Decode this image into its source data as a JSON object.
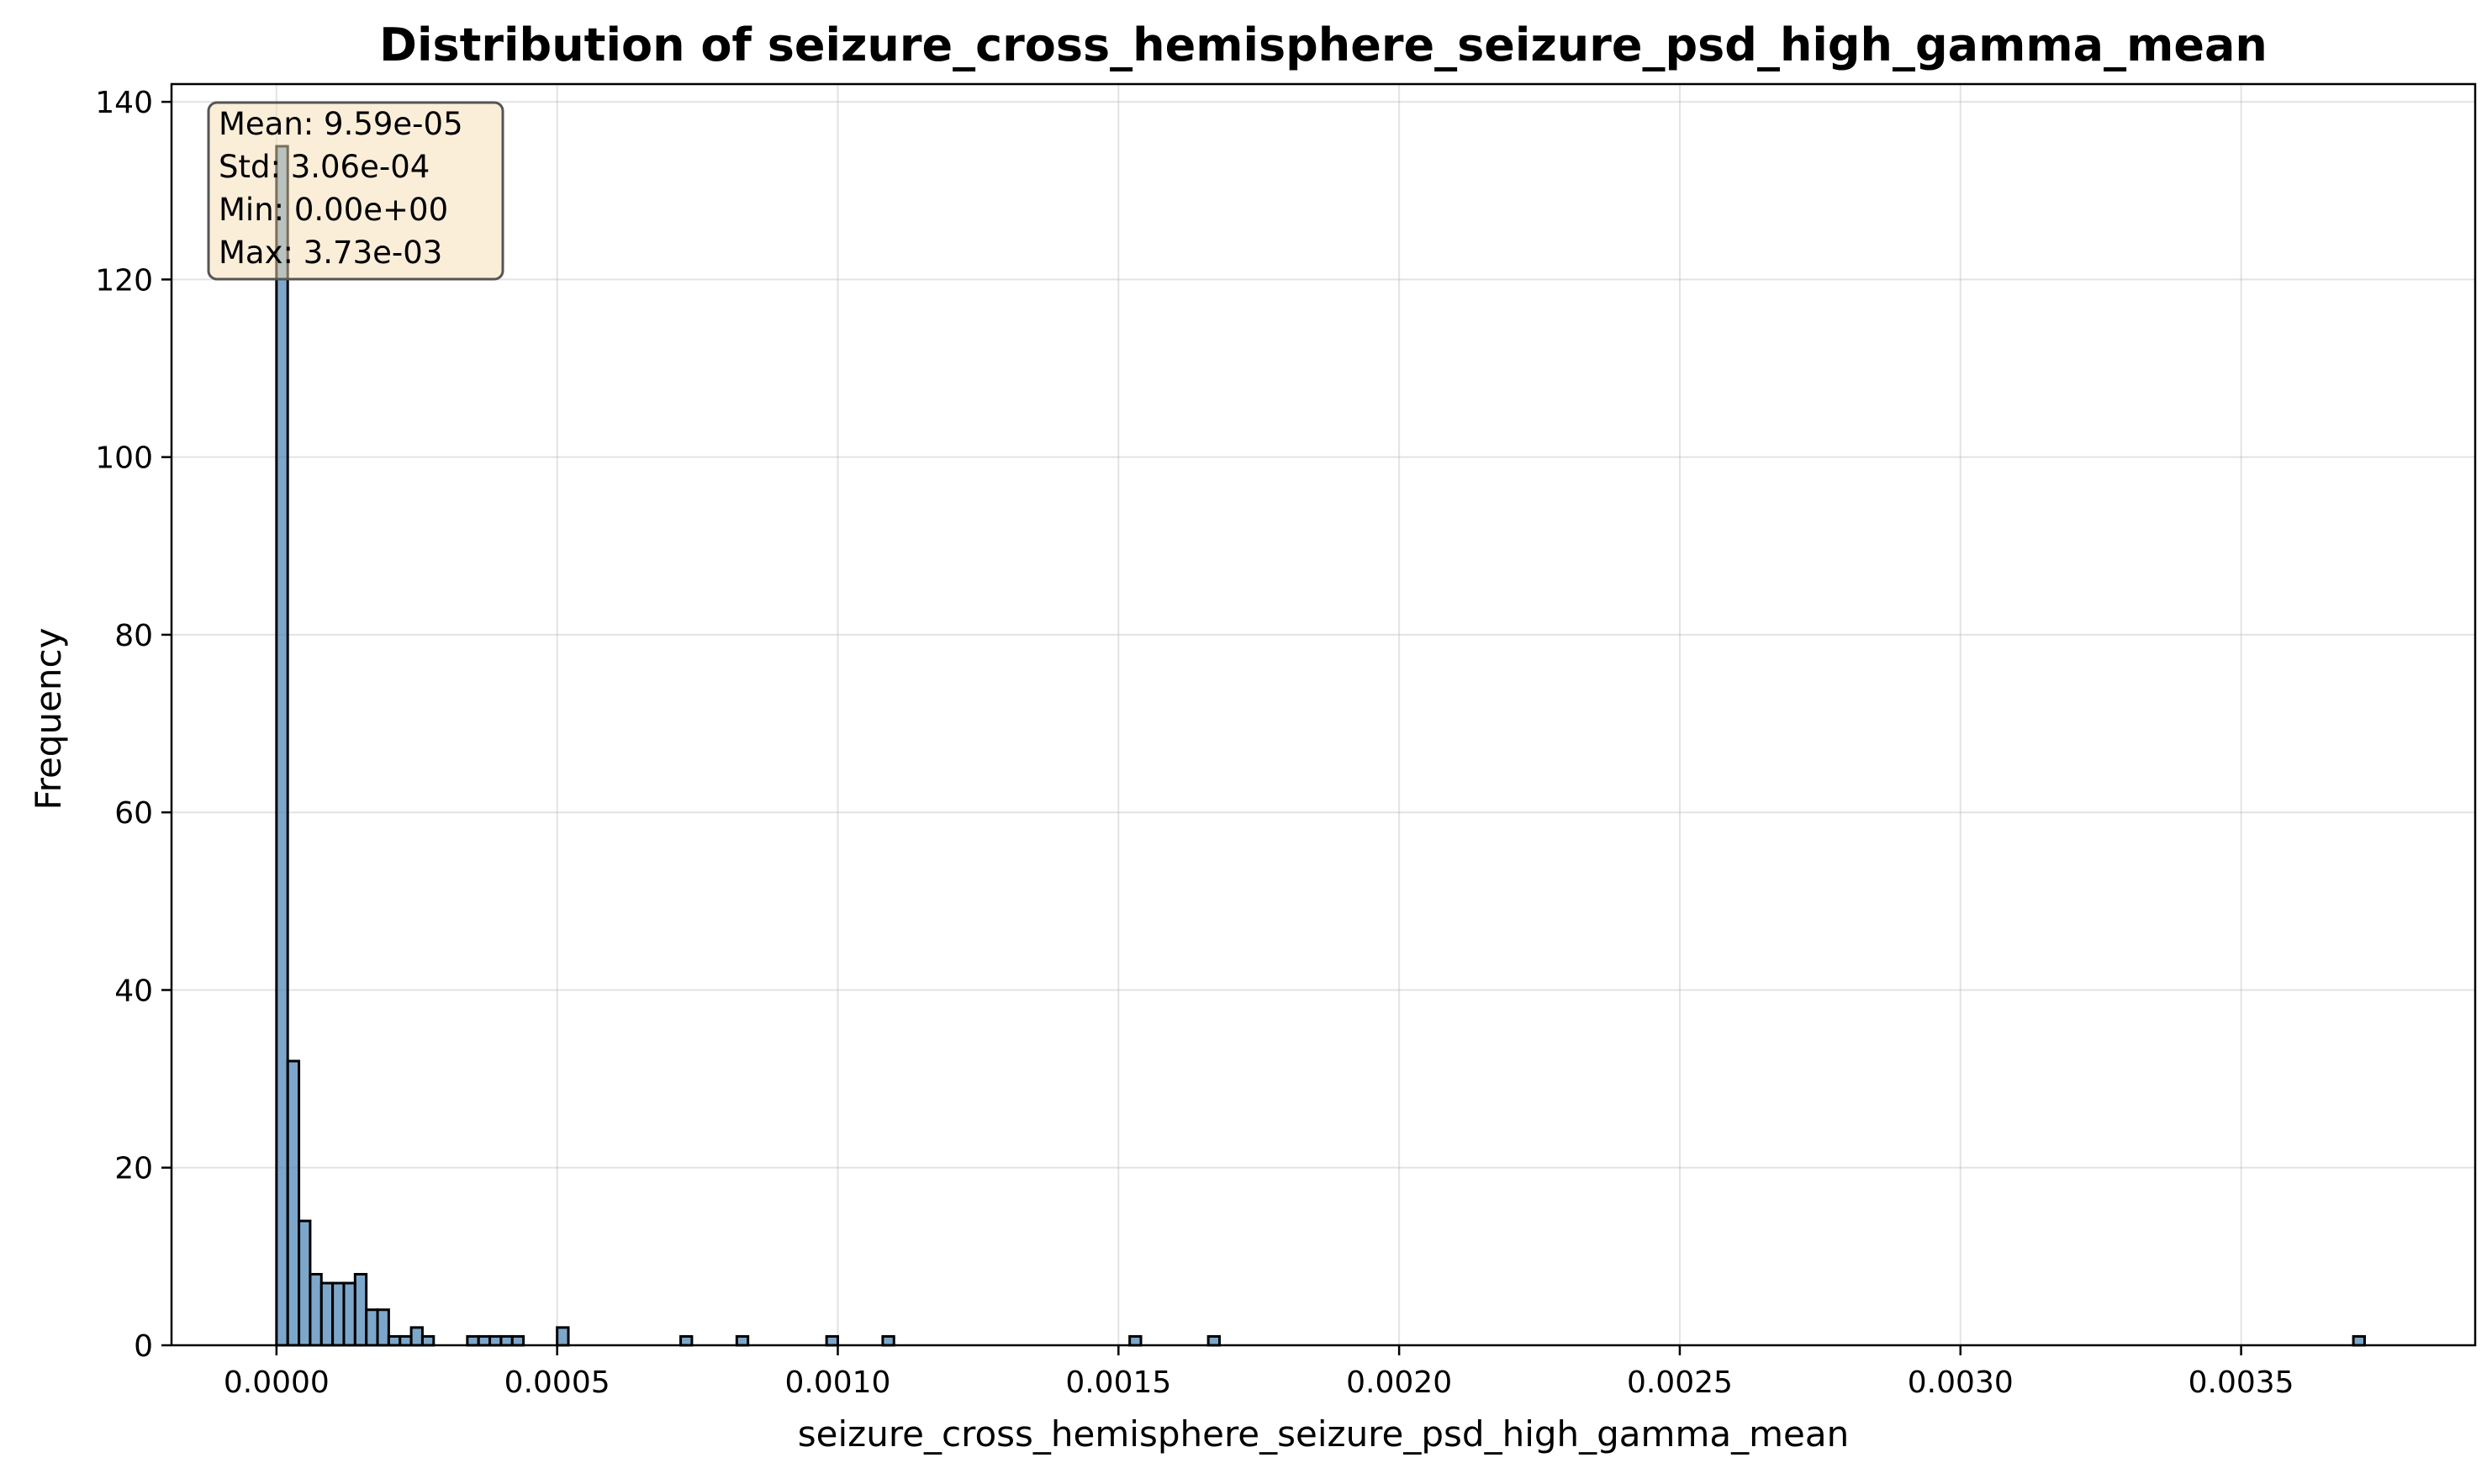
{
  "chart_data": {
    "type": "bar",
    "subtype": "histogram",
    "title": "Distribution of seizure_cross_hemisphere_seizure_psd_high_gamma_mean",
    "xlabel": "seizure_cross_hemisphere_seizure_psd_high_gamma_mean",
    "ylabel": "Frequency",
    "xlim": [
      -0.000187,
      0.003917
    ],
    "ylim": [
      0,
      142
    ],
    "bin_width": 2e-05,
    "x_ticks": [
      0.0,
      0.0005,
      0.001,
      0.0015,
      0.002,
      0.0025,
      0.003,
      0.0035
    ],
    "x_tick_labels": [
      "0.0000",
      "0.0005",
      "0.0010",
      "0.0015",
      "0.0020",
      "0.0025",
      "0.0030",
      "0.0035"
    ],
    "y_ticks": [
      0,
      20,
      40,
      60,
      80,
      100,
      120,
      140
    ],
    "y_tick_labels": [
      "0",
      "20",
      "40",
      "60",
      "80",
      "100",
      "120",
      "140"
    ],
    "grid": true,
    "bins": [
      {
        "x": 0.0,
        "count": 135
      },
      {
        "x": 2e-05,
        "count": 32
      },
      {
        "x": 4e-05,
        "count": 14
      },
      {
        "x": 6e-05,
        "count": 8
      },
      {
        "x": 8e-05,
        "count": 7
      },
      {
        "x": 0.0001,
        "count": 7
      },
      {
        "x": 0.00012,
        "count": 7
      },
      {
        "x": 0.00014,
        "count": 8
      },
      {
        "x": 0.00016,
        "count": 4
      },
      {
        "x": 0.00018,
        "count": 4
      },
      {
        "x": 0.0002,
        "count": 1
      },
      {
        "x": 0.00022,
        "count": 1
      },
      {
        "x": 0.00024,
        "count": 2
      },
      {
        "x": 0.00026,
        "count": 1
      },
      {
        "x": 0.00034,
        "count": 1
      },
      {
        "x": 0.00036,
        "count": 1
      },
      {
        "x": 0.00038,
        "count": 1
      },
      {
        "x": 0.0004,
        "count": 1
      },
      {
        "x": 0.00042,
        "count": 1
      },
      {
        "x": 0.0005,
        "count": 2
      },
      {
        "x": 0.00072,
        "count": 1
      },
      {
        "x": 0.00082,
        "count": 1
      },
      {
        "x": 0.00098,
        "count": 1
      },
      {
        "x": 0.00108,
        "count": 1
      },
      {
        "x": 0.00152,
        "count": 1
      },
      {
        "x": 0.00166,
        "count": 1
      },
      {
        "x": 0.0037,
        "count": 1
      }
    ],
    "stats": {
      "mean": "Mean: 9.59e-05",
      "std": "Std: 3.06e-04",
      "min": "Min: 0.00e+00",
      "max": "Max: 3.73e-03"
    },
    "colors": {
      "bar_fill": "#4682b4",
      "bar_edge": "#000000",
      "stats_box_fill": "#f5deb3",
      "stats_box_edge": "#555555"
    }
  }
}
